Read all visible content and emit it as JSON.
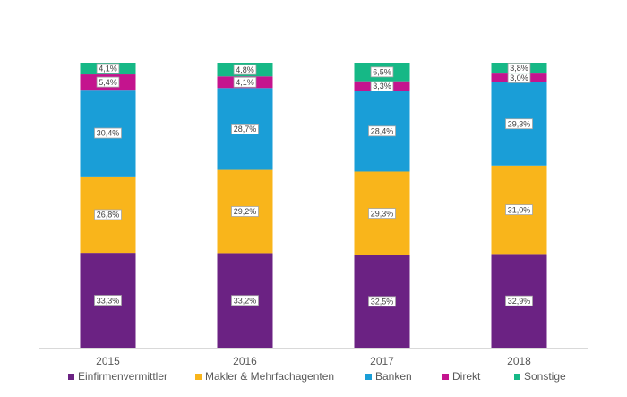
{
  "chart_data": {
    "type": "bar",
    "stacked": true,
    "title": "",
    "xlabel": "",
    "ylabel": "",
    "ylim": [
      0,
      100
    ],
    "grid": false,
    "legend_position": "bottom",
    "categories": [
      "2015",
      "2016",
      "2017",
      "2018"
    ],
    "series": [
      {
        "name": "Einfirmenvermittler",
        "color": "#6b2283",
        "values": [
          33.3,
          33.2,
          32.5,
          32.9
        ],
        "labels": [
          "33,3%",
          "33,2%",
          "32,5%",
          "32,9%"
        ]
      },
      {
        "name": "Makler & Mehrfachagenten",
        "color": "#f9b51b",
        "values": [
          26.8,
          29.2,
          29.3,
          31.0
        ],
        "labels": [
          "26,8%",
          "29,2%",
          "29,3%",
          "31,0%"
        ]
      },
      {
        "name": "Banken",
        "color": "#1a9ed7",
        "values": [
          30.4,
          28.7,
          28.4,
          29.3
        ],
        "labels": [
          "30,4%",
          "28,7%",
          "28,4%",
          "29,3%"
        ]
      },
      {
        "name": "Direkt",
        "color": "#c4148e",
        "values": [
          5.4,
          4.1,
          3.3,
          3.0
        ],
        "labels": [
          "5,4%",
          "4,1%",
          "3,3%",
          "3,0%"
        ]
      },
      {
        "name": "Sonstige",
        "color": "#16b886",
        "values": [
          4.1,
          4.8,
          6.5,
          3.8
        ],
        "labels": [
          "4,1%",
          "4,8%",
          "6,5%",
          "3,8%"
        ]
      }
    ]
  }
}
